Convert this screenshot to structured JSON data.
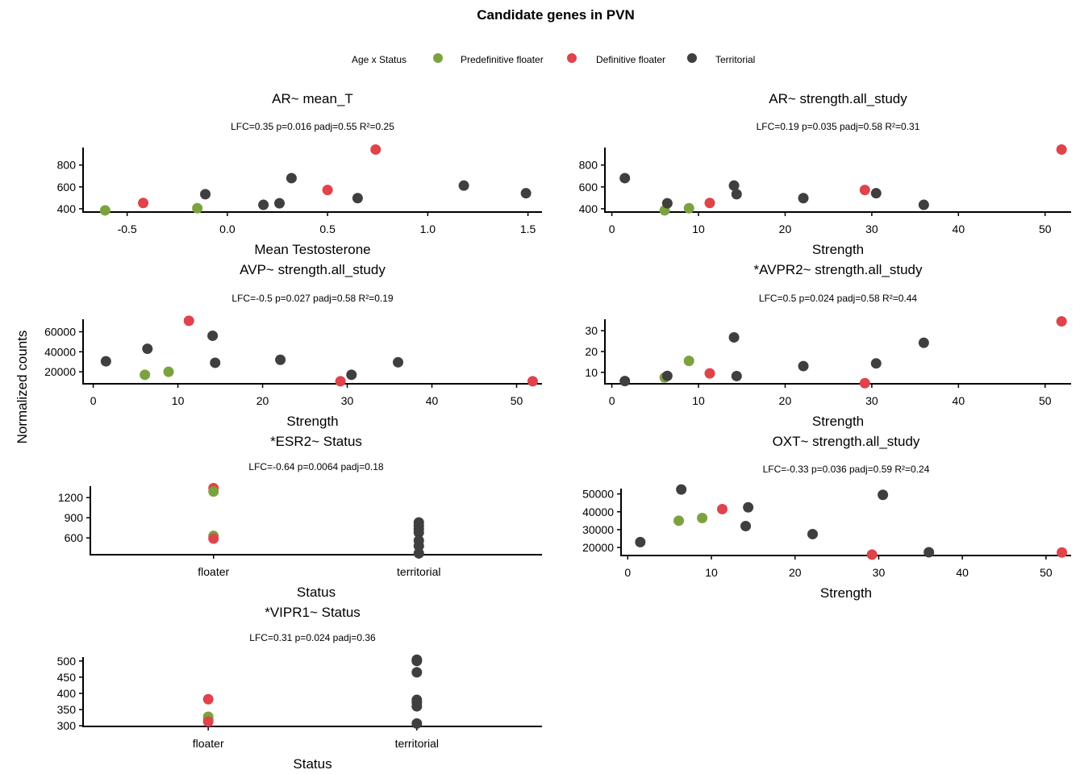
{
  "figure_title": "Candidate genes in PVN",
  "y_axis_label": "Normalized counts",
  "legend": {
    "title": "Age x Status",
    "items": [
      {
        "label": "Predefinitive floater",
        "color": "#7ba23f"
      },
      {
        "label": "Definitive floater",
        "color": "#e0434b"
      },
      {
        "label": "Territorial",
        "color": "#3f3f3f"
      }
    ]
  },
  "colors": {
    "pred": "#7ba23f",
    "def": "#e0434b",
    "terr": "#3f3f3f"
  },
  "chart_data": [
    {
      "type": "scatter",
      "title": "AR~ mean_T",
      "subtitle": "LFC=0.35 p=0.016 padj=0.55 R²=0.25",
      "xlabel": "Mean Testosterone",
      "xlim": [
        -0.72,
        1.57
      ],
      "ylim": [
        370,
        960
      ],
      "xticks": [
        {
          "v": -0.5,
          "label": "-0.5"
        },
        {
          "v": 0,
          "label": "0.0"
        },
        {
          "v": 0.5,
          "label": "0.5"
        },
        {
          "v": 1.0,
          "label": "1.0"
        },
        {
          "v": 1.5,
          "label": "1.5"
        }
      ],
      "yticks": [
        {
          "v": 400,
          "label": "400"
        },
        {
          "v": 600,
          "label": "600"
        },
        {
          "v": 800,
          "label": "800"
        }
      ],
      "points": [
        {
          "x": -0.61,
          "y": 385,
          "group": "pred"
        },
        {
          "x": -0.15,
          "y": 405,
          "group": "pred"
        },
        {
          "x": -0.42,
          "y": 453,
          "group": "def"
        },
        {
          "x": 0.5,
          "y": 572,
          "group": "def"
        },
        {
          "x": 0.74,
          "y": 942,
          "group": "def"
        },
        {
          "x": -0.11,
          "y": 533,
          "group": "terr"
        },
        {
          "x": 0.18,
          "y": 436,
          "group": "terr"
        },
        {
          "x": 0.26,
          "y": 450,
          "group": "terr"
        },
        {
          "x": 0.32,
          "y": 680,
          "group": "terr"
        },
        {
          "x": 0.65,
          "y": 497,
          "group": "terr"
        },
        {
          "x": 1.18,
          "y": 612,
          "group": "terr"
        },
        {
          "x": 1.49,
          "y": 542,
          "group": "terr"
        }
      ]
    },
    {
      "type": "scatter",
      "title": "AR~ strength.all_study",
      "subtitle": "LFC=0.19 p=0.035 padj=0.58 R²=0.31",
      "xlabel": "Strength",
      "xlim": [
        -0.8,
        53
      ],
      "ylim": [
        370,
        960
      ],
      "xticks": [
        {
          "v": 0,
          "label": "0"
        },
        {
          "v": 10,
          "label": "10"
        },
        {
          "v": 20,
          "label": "20"
        },
        {
          "v": 30,
          "label": "30"
        },
        {
          "v": 40,
          "label": "40"
        },
        {
          "v": 50,
          "label": "50"
        }
      ],
      "yticks": [
        {
          "v": 400,
          "label": "400"
        },
        {
          "v": 600,
          "label": "600"
        },
        {
          "v": 800,
          "label": "800"
        }
      ],
      "points": [
        {
          "x": 6.1,
          "y": 385,
          "group": "pred"
        },
        {
          "x": 8.9,
          "y": 405,
          "group": "pred"
        },
        {
          "x": 11.3,
          "y": 453,
          "group": "def"
        },
        {
          "x": 29.2,
          "y": 572,
          "group": "def"
        },
        {
          "x": 51.9,
          "y": 942,
          "group": "def"
        },
        {
          "x": 1.5,
          "y": 680,
          "group": "terr"
        },
        {
          "x": 6.4,
          "y": 450,
          "group": "terr"
        },
        {
          "x": 14.1,
          "y": 612,
          "group": "terr"
        },
        {
          "x": 14.4,
          "y": 533,
          "group": "terr"
        },
        {
          "x": 22.1,
          "y": 497,
          "group": "terr"
        },
        {
          "x": 30.5,
          "y": 542,
          "group": "terr"
        },
        {
          "x": 36.0,
          "y": 436,
          "group": "terr"
        }
      ]
    },
    {
      "type": "scatter",
      "title": "AVP~ strength.all_study",
      "subtitle": "LFC=-0.5 p=0.027 padj=0.58 R²=0.19",
      "xlabel": "Strength",
      "xlim": [
        -1.2,
        53
      ],
      "ylim": [
        8000,
        72500
      ],
      "xticks": [
        {
          "v": 0,
          "label": "0"
        },
        {
          "v": 10,
          "label": "10"
        },
        {
          "v": 20,
          "label": "20"
        },
        {
          "v": 30,
          "label": "30"
        },
        {
          "v": 40,
          "label": "40"
        },
        {
          "v": 50,
          "label": "50"
        }
      ],
      "yticks": [
        {
          "v": 20000,
          "label": "20000"
        },
        {
          "v": 40000,
          "label": "40000"
        },
        {
          "v": 60000,
          "label": "60000"
        }
      ],
      "points": [
        {
          "x": 6.1,
          "y": 17000,
          "group": "pred"
        },
        {
          "x": 8.9,
          "y": 20000,
          "group": "pred"
        },
        {
          "x": 11.3,
          "y": 71000,
          "group": "def"
        },
        {
          "x": 29.2,
          "y": 10500,
          "group": "def"
        },
        {
          "x": 51.9,
          "y": 10500,
          "group": "def"
        },
        {
          "x": 1.5,
          "y": 30500,
          "group": "terr"
        },
        {
          "x": 6.4,
          "y": 43000,
          "group": "terr"
        },
        {
          "x": 14.1,
          "y": 56000,
          "group": "terr"
        },
        {
          "x": 14.4,
          "y": 29000,
          "group": "terr"
        },
        {
          "x": 22.1,
          "y": 32000,
          "group": "terr"
        },
        {
          "x": 30.5,
          "y": 17000,
          "group": "terr"
        },
        {
          "x": 36.0,
          "y": 29500,
          "group": "terr"
        }
      ]
    },
    {
      "type": "scatter",
      "title": "*AVPR2~ strength.all_study",
      "subtitle": "LFC=0.5 p=0.024 padj=0.58 R²=0.44",
      "xlabel": "Strength",
      "xlim": [
        -0.8,
        53
      ],
      "ylim": [
        4.5,
        35.5
      ],
      "xticks": [
        {
          "v": 0,
          "label": "0"
        },
        {
          "v": 10,
          "label": "10"
        },
        {
          "v": 20,
          "label": "20"
        },
        {
          "v": 30,
          "label": "30"
        },
        {
          "v": 40,
          "label": "40"
        },
        {
          "v": 50,
          "label": "50"
        }
      ],
      "yticks": [
        {
          "v": 10,
          "label": "10"
        },
        {
          "v": 20,
          "label": "20"
        },
        {
          "v": 30,
          "label": "30"
        }
      ],
      "points": [
        {
          "x": 6.1,
          "y": 7.5,
          "group": "pred"
        },
        {
          "x": 8.9,
          "y": 15.5,
          "group": "pred"
        },
        {
          "x": 11.3,
          "y": 9.5,
          "group": "def"
        },
        {
          "x": 29.2,
          "y": 4.8,
          "group": "def"
        },
        {
          "x": 51.9,
          "y": 34.5,
          "group": "def"
        },
        {
          "x": 1.5,
          "y": 5.8,
          "group": "terr"
        },
        {
          "x": 6.4,
          "y": 8.3,
          "group": "terr"
        },
        {
          "x": 14.1,
          "y": 26.8,
          "group": "terr"
        },
        {
          "x": 14.4,
          "y": 8.2,
          "group": "terr"
        },
        {
          "x": 22.1,
          "y": 13.0,
          "group": "terr"
        },
        {
          "x": 30.5,
          "y": 14.3,
          "group": "terr"
        },
        {
          "x": 36.0,
          "y": 24.2,
          "group": "terr"
        }
      ]
    },
    {
      "type": "scatter",
      "title": "*ESR2~ Status",
      "subtitle": "LFC=-0.64 p=0.0064 padj=0.18",
      "xlabel": "Status",
      "categories": [
        "floater",
        "territorial"
      ],
      "xlim": [
        0.4,
        2.6
      ],
      "ylim": [
        350,
        1370
      ],
      "xticks": [
        {
          "v": 1,
          "label": "floater"
        },
        {
          "v": 2,
          "label": "territorial"
        }
      ],
      "yticks": [
        {
          "v": 600,
          "label": "600"
        },
        {
          "v": 900,
          "label": "900"
        },
        {
          "v": 1200,
          "label": "1200"
        }
      ],
      "points": [
        {
          "x": 1,
          "y": 1340,
          "group": "def"
        },
        {
          "x": 1,
          "y": 1290,
          "group": "pred"
        },
        {
          "x": 1,
          "y": 630,
          "group": "pred"
        },
        {
          "x": 1,
          "y": 590,
          "group": "def"
        },
        {
          "x": 2,
          "y": 830,
          "group": "terr"
        },
        {
          "x": 2,
          "y": 780,
          "group": "terr"
        },
        {
          "x": 2,
          "y": 730,
          "group": "terr"
        },
        {
          "x": 2,
          "y": 680,
          "group": "terr"
        },
        {
          "x": 2,
          "y": 560,
          "group": "terr"
        },
        {
          "x": 2,
          "y": 480,
          "group": "terr"
        },
        {
          "x": 2,
          "y": 370,
          "group": "terr"
        }
      ]
    },
    {
      "type": "scatter",
      "title": "OXT~ strength.all_study",
      "subtitle": "LFC=-0.33 p=0.036 padj=0.59 R²=0.24",
      "xlabel": "Strength",
      "xlim": [
        -0.8,
        53
      ],
      "ylim": [
        15500,
        53000
      ],
      "xticks": [
        {
          "v": 0,
          "label": "0"
        },
        {
          "v": 10,
          "label": "10"
        },
        {
          "v": 20,
          "label": "20"
        },
        {
          "v": 30,
          "label": "30"
        },
        {
          "v": 40,
          "label": "40"
        },
        {
          "v": 50,
          "label": "50"
        }
      ],
      "yticks": [
        {
          "v": 20000,
          "label": "20000"
        },
        {
          "v": 30000,
          "label": "30000"
        },
        {
          "v": 40000,
          "label": "40000"
        },
        {
          "v": 50000,
          "label": "50000"
        }
      ],
      "points": [
        {
          "x": 6.1,
          "y": 35000,
          "group": "pred"
        },
        {
          "x": 8.9,
          "y": 36500,
          "group": "pred"
        },
        {
          "x": 11.3,
          "y": 41500,
          "group": "def"
        },
        {
          "x": 29.2,
          "y": 16000,
          "group": "def"
        },
        {
          "x": 51.9,
          "y": 17200,
          "group": "def"
        },
        {
          "x": 1.5,
          "y": 23000,
          "group": "terr"
        },
        {
          "x": 6.4,
          "y": 52500,
          "group": "terr"
        },
        {
          "x": 14.1,
          "y": 32000,
          "group": "terr"
        },
        {
          "x": 14.4,
          "y": 42500,
          "group": "terr"
        },
        {
          "x": 22.1,
          "y": 27500,
          "group": "terr"
        },
        {
          "x": 30.5,
          "y": 49500,
          "group": "terr"
        },
        {
          "x": 36.0,
          "y": 17300,
          "group": "terr"
        }
      ]
    },
    {
      "type": "scatter",
      "title": "*VIPR1~ Status",
      "subtitle": "LFC=0.31 p=0.024 padj=0.36",
      "xlabel": "Status",
      "categories": [
        "floater",
        "territorial"
      ],
      "xlim": [
        0.4,
        2.6
      ],
      "ylim": [
        298,
        512
      ],
      "xticks": [
        {
          "v": 1,
          "label": "floater"
        },
        {
          "v": 2,
          "label": "territorial"
        }
      ],
      "yticks": [
        {
          "v": 300,
          "label": "300"
        },
        {
          "v": 350,
          "label": "350"
        },
        {
          "v": 400,
          "label": "400"
        },
        {
          "v": 450,
          "label": "450"
        },
        {
          "v": 500,
          "label": "500"
        }
      ],
      "points": [
        {
          "x": 1,
          "y": 382,
          "group": "def"
        },
        {
          "x": 1,
          "y": 328,
          "group": "pred"
        },
        {
          "x": 1,
          "y": 322,
          "group": "pred"
        },
        {
          "x": 1,
          "y": 313,
          "group": "def"
        },
        {
          "x": 2,
          "y": 504,
          "group": "terr"
        },
        {
          "x": 2,
          "y": 500,
          "group": "terr"
        },
        {
          "x": 2,
          "y": 465,
          "group": "terr"
        },
        {
          "x": 2,
          "y": 380,
          "group": "terr"
        },
        {
          "x": 2,
          "y": 372,
          "group": "terr"
        },
        {
          "x": 2,
          "y": 360,
          "group": "terr"
        },
        {
          "x": 2,
          "y": 307,
          "group": "terr"
        }
      ]
    }
  ]
}
